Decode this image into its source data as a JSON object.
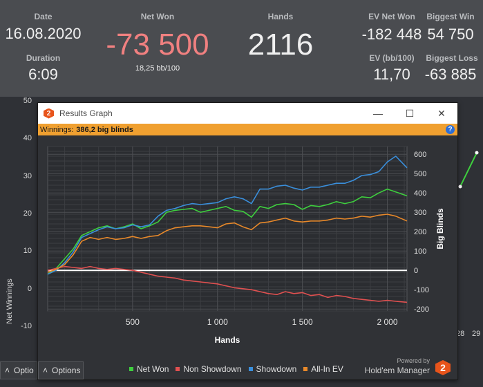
{
  "stats": {
    "date_label": "Date",
    "date_value": "16.08.2020",
    "duration_label": "Duration",
    "duration_value": "6:09",
    "net_won_label": "Net Won",
    "net_won_value": "-73 500",
    "net_won_sub": "18,25 bb/100",
    "hands_label": "Hands",
    "hands_value": "2116",
    "ev_net_won_label": "EV Net Won",
    "ev_net_won_value": "-182 448",
    "ev_bb_label": "EV (bb/100)",
    "ev_bb_value": "11,70",
    "biggest_win_label": "Biggest Win",
    "biggest_win_value": "54 750",
    "biggest_loss_label": "Biggest Loss",
    "biggest_loss_value": "-63 885"
  },
  "background_chart": {
    "ylabel": "Net Winnings",
    "yticks": [
      "50",
      "40",
      "30",
      "20",
      "10",
      "0",
      "-10"
    ],
    "xticks": [
      "28",
      "29"
    ],
    "options_label": "Optio"
  },
  "window": {
    "title": "Results Graph",
    "minimize": "—",
    "maximize": "☐",
    "close": "✕",
    "winnings_label": "Winnings:",
    "winnings_value": "386,2 big blinds",
    "help": "?",
    "options_button": "Options",
    "powered_by": "Powered by",
    "brand": "Hold'em Manager",
    "brand_logo": "2"
  },
  "chart_data": {
    "type": "line",
    "xlabel": "Hands",
    "ylabel": "Big Blinds",
    "xlim": [
      0,
      2116
    ],
    "ylim": [
      -210,
      640
    ],
    "xticks": [
      500,
      1000,
      1500,
      2000
    ],
    "xtick_labels": [
      "500",
      "1 000",
      "1 500",
      "2 000"
    ],
    "yticks": [
      -200,
      -100,
      0,
      100,
      200,
      300,
      400,
      500,
      600
    ],
    "x": [
      0,
      50,
      100,
      150,
      200,
      250,
      300,
      350,
      400,
      450,
      500,
      550,
      600,
      650,
      700,
      750,
      800,
      850,
      900,
      950,
      1000,
      1050,
      1100,
      1150,
      1200,
      1250,
      1300,
      1350,
      1400,
      1450,
      1500,
      1550,
      1600,
      1650,
      1700,
      1750,
      1800,
      1850,
      1900,
      1950,
      2000,
      2050,
      2116
    ],
    "series": [
      {
        "name": "Net Won",
        "color": "#3ecf3e",
        "values": [
          -20,
          10,
          60,
          110,
          180,
          200,
          220,
          230,
          215,
          225,
          240,
          215,
          230,
          250,
          300,
          310,
          315,
          320,
          300,
          310,
          320,
          330,
          310,
          305,
          275,
          330,
          320,
          340,
          345,
          340,
          315,
          335,
          330,
          340,
          355,
          345,
          355,
          380,
          375,
          400,
          420,
          405,
          385
        ]
      },
      {
        "name": "Non Showdown",
        "color": "#e05050",
        "values": [
          0,
          10,
          20,
          15,
          10,
          20,
          10,
          5,
          10,
          5,
          0,
          -10,
          -20,
          -30,
          -35,
          -40,
          -50,
          -55,
          -60,
          -65,
          -70,
          -80,
          -90,
          -95,
          -100,
          -110,
          -120,
          -125,
          -110,
          -120,
          -115,
          -130,
          -125,
          -140,
          -130,
          -135,
          -145,
          -150,
          -155,
          -160,
          -155,
          -160,
          -165
        ]
      },
      {
        "name": "Showdown",
        "color": "#3a8fdc",
        "values": [
          -20,
          0,
          40,
          95,
          170,
          190,
          210,
          225,
          215,
          220,
          235,
          225,
          235,
          280,
          310,
          320,
          335,
          345,
          340,
          345,
          350,
          370,
          380,
          370,
          345,
          420,
          420,
          435,
          440,
          425,
          415,
          430,
          430,
          440,
          450,
          450,
          465,
          490,
          495,
          510,
          560,
          590,
          530
        ]
      },
      {
        "name": "All-In EV",
        "color": "#e8892a",
        "values": [
          -10,
          5,
          30,
          80,
          150,
          170,
          160,
          170,
          160,
          165,
          175,
          165,
          175,
          180,
          205,
          220,
          225,
          230,
          230,
          225,
          220,
          240,
          245,
          225,
          210,
          245,
          250,
          260,
          270,
          255,
          250,
          255,
          255,
          260,
          270,
          265,
          270,
          280,
          275,
          285,
          290,
          280,
          255
        ]
      }
    ],
    "legend": "bottom"
  }
}
